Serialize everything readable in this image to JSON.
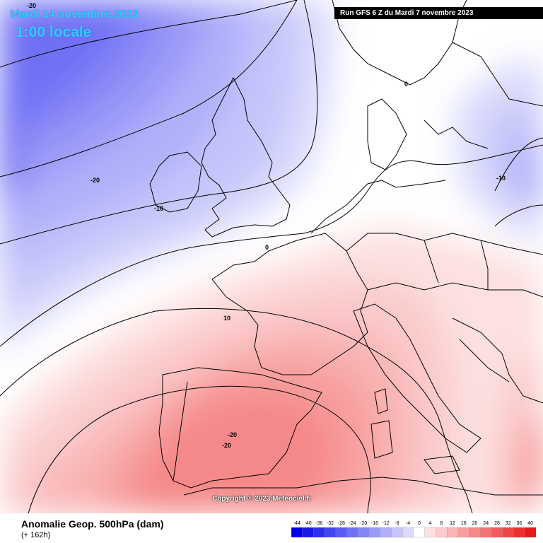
{
  "header": {
    "date": "Mardi 14 novembre 2023",
    "local_time": "1:00 locale",
    "run_info": "Run GFS 6 Z du Mardi 7 novembre 2023"
  },
  "map": {
    "copyright": "Copyright © 2023 Meteociel.fr",
    "contour_labels": [
      "-20",
      "-20",
      "-10",
      "0",
      "0",
      "10",
      "-20",
      "-20",
      "-10"
    ]
  },
  "footer": {
    "field_title": "Anomalie Geop. 500hPa (dam)",
    "lead_time": "(+ 162h)"
  },
  "legend": {
    "labels": [
      "-44",
      "-40",
      "-36",
      "-32",
      "-28",
      "-24",
      "-20",
      "-16",
      "-12",
      "-8",
      "-4",
      "0",
      "4",
      "8",
      "12",
      "16",
      "20",
      "24",
      "28",
      "32",
      "36",
      "40"
    ],
    "colors": [
      "#0000e6",
      "#1a1ae8",
      "#2f2fee",
      "#4545f2",
      "#5a5af4",
      "#7070f5",
      "#8585f7",
      "#9a9af8",
      "#b0b0fa",
      "#c5c5fb",
      "#dadafc",
      "#ffffff",
      "#fde0e0",
      "#fbcaca",
      "#f9b4b4",
      "#f79e9e",
      "#f58888",
      "#f37272",
      "#f15c5c",
      "#ee4646",
      "#ec3030",
      "#e61a1a"
    ]
  }
}
